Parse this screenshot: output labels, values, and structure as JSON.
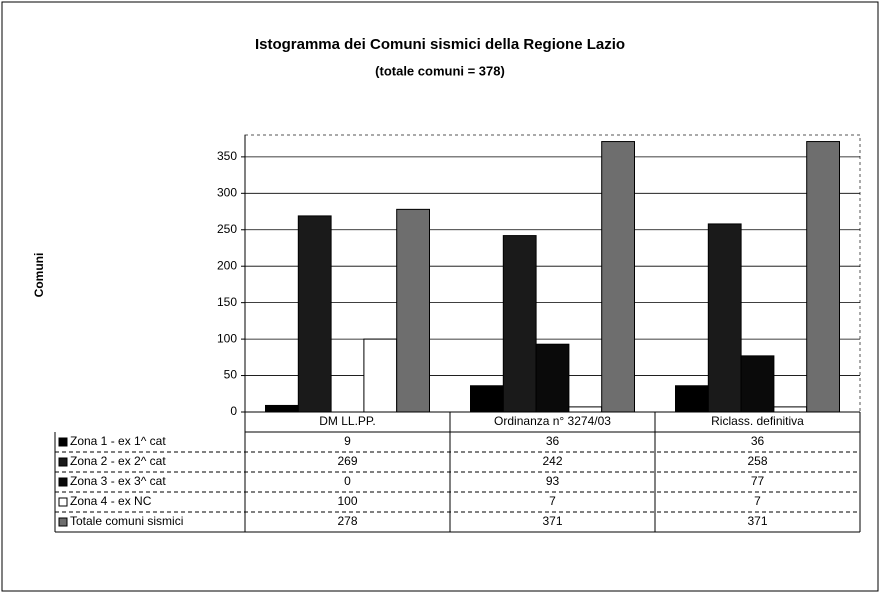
{
  "chart_data": {
    "type": "bar",
    "title": "Istogramma dei Comuni sismici della Regione Lazio",
    "subtitle": "(totale comuni = 378)",
    "y_label": "Comuni",
    "categories": [
      "DM LL.PP.",
      "Ordinanza n° 3274/03",
      "Riclass. definitiva"
    ],
    "series": [
      {
        "name": "Zona 1 - ex 1^ cat",
        "color": "#000000",
        "values": [
          9,
          36,
          36
        ]
      },
      {
        "name": "Zona 2 - ex 2^ cat",
        "color": "#1a1a1a",
        "values": [
          269,
          242,
          258
        ]
      },
      {
        "name": "Zona 3 - ex 3^ cat",
        "color": "#0a0a0a",
        "values": [
          0,
          93,
          77
        ]
      },
      {
        "name": "Zona 4 - ex NC",
        "color": "#ffffff",
        "values": [
          100,
          7,
          7
        ]
      },
      {
        "name": "Totale comuni sismici",
        "color": "#6e6e6e",
        "values": [
          278,
          371,
          371
        ]
      }
    ],
    "ylim": [
      0,
      380
    ],
    "yticks": [
      0,
      50,
      100,
      150,
      200,
      250,
      300,
      350
    ],
    "grid": true
  }
}
